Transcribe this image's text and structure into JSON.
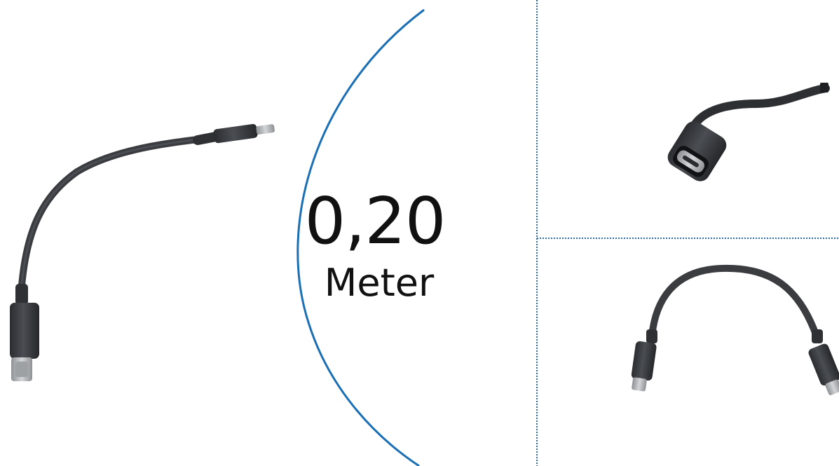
{
  "product": {
    "length_value": "0,20",
    "length_unit": "Meter"
  },
  "colors": {
    "accent_arc": "#1a6fb5",
    "divider": "#2b6ca3",
    "cable": "#3a3c40",
    "cable_dark": "#1d1f22",
    "connector_metal": "#b9bcbf",
    "background": "#ffffff"
  },
  "images": [
    {
      "name": "cable-full-view"
    },
    {
      "name": "connector-closeup"
    },
    {
      "name": "cable-arch-view"
    }
  ]
}
